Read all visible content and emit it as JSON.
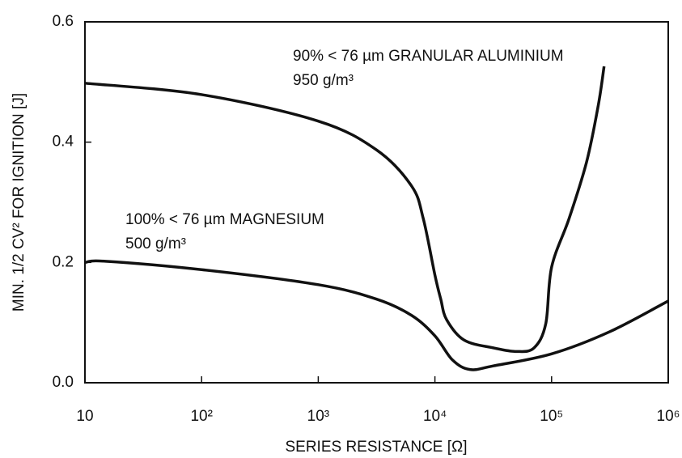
{
  "chart_data": {
    "type": "line",
    "x_label": "SERIES RESISTANCE  [Ω]",
    "y_label": "MIN. 1/2 CV² FOR IGNITION  [J]",
    "log_x": true,
    "xlim": [
      10,
      1000000
    ],
    "ylim": [
      0,
      0.6
    ],
    "xticks": [
      10,
      {
        "value": 100,
        "label": "10²"
      },
      {
        "value": 1000,
        "label": "10³"
      },
      {
        "value": 10000,
        "label": "10⁴"
      },
      {
        "value": 100000,
        "label": "10⁵"
      },
      {
        "value": 1000000,
        "label": "10⁶"
      }
    ],
    "yticks": [
      {
        "value": 0,
        "label": "0.0"
      },
      0.2,
      0.4,
      0.6
    ],
    "annotations": [
      {
        "text": "90% < 76 µm GRANULAR ALUMINIUM",
        "sub": "950 g/m³"
      },
      {
        "text": "100% < 76 µm MAGNESIUM",
        "sub": "500 g/m³"
      }
    ],
    "series": [
      {
        "name": "Granular aluminium",
        "color": "#111111",
        "x": [
          10,
          100,
          1000,
          3162,
          6310,
          7943,
          10000,
          11220,
          12589,
          17783,
          31623,
          50119,
          70795,
          89125,
          100000,
          141254,
          199526,
          251189,
          281838
        ],
        "values": [
          0.498,
          0.479,
          0.435,
          0.387,
          0.327,
          0.273,
          0.179,
          0.139,
          0.105,
          0.071,
          0.058,
          0.052,
          0.058,
          0.098,
          0.192,
          0.273,
          0.367,
          0.461,
          0.526
        ]
      },
      {
        "name": "Magnesium",
        "color": "#111111",
        "x": [
          10,
          15,
          100,
          1000,
          3162,
          6310,
          10000,
          14125,
          19953,
          31623,
          100000,
          316228,
          1000000
        ],
        "values": [
          0.2,
          0.202,
          0.188,
          0.163,
          0.139,
          0.112,
          0.078,
          0.038,
          0.022,
          0.028,
          0.048,
          0.085,
          0.136
        ]
      }
    ]
  }
}
